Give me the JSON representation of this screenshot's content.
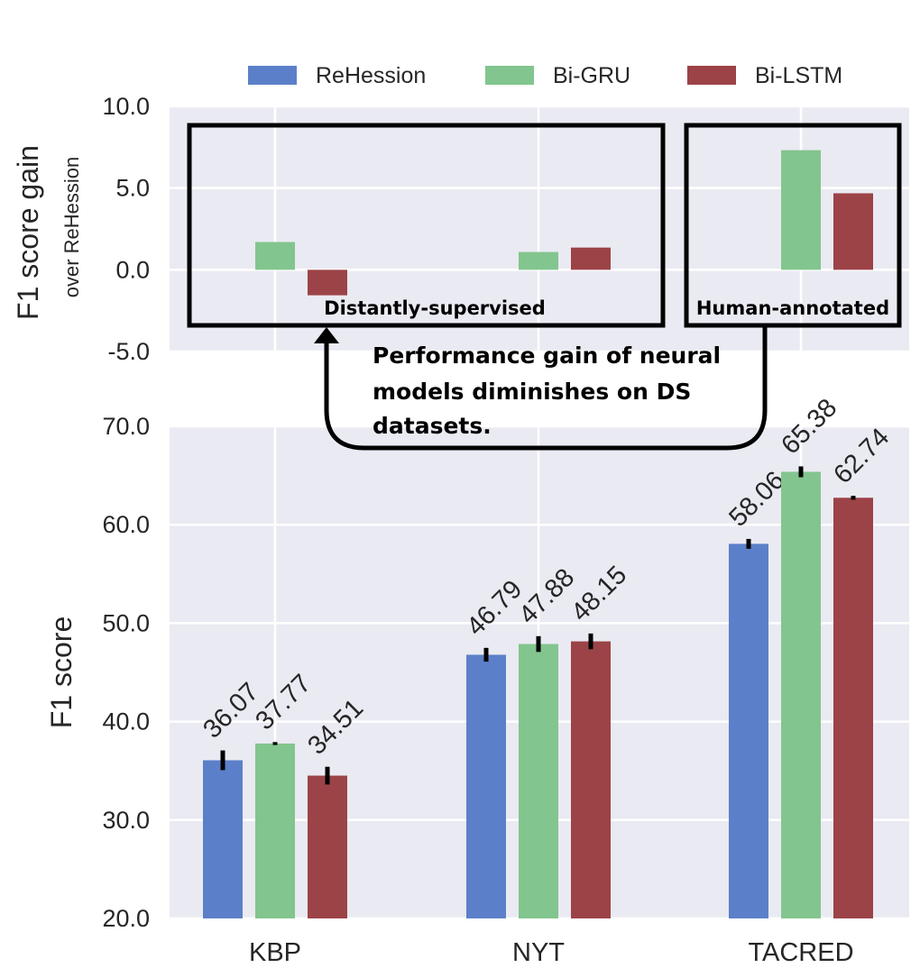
{
  "chart_data": [
    {
      "type": "bar",
      "title": "",
      "ylabel": "F1 score gain",
      "ylabel_sub": "over ReHession",
      "ylim": [
        -5.0,
        10.0
      ],
      "yticks": [
        "10.0",
        "5.0",
        "0.0",
        "-5.0"
      ],
      "categories": [
        "KBP",
        "NYT",
        "TACRED"
      ],
      "series": [
        {
          "name": "ReHession",
          "color": "#5b80c9",
          "values": [
            0,
            0,
            0
          ]
        },
        {
          "name": "Bi-GRU",
          "color": "#82c58e",
          "values": [
            1.7,
            1.09,
            7.32
          ]
        },
        {
          "name": "Bi-LSTM",
          "color": "#9c4347",
          "values": [
            -1.56,
            1.36,
            4.68
          ]
        }
      ],
      "annotations": {
        "ds_box": "Distantly-supervised",
        "ha_box": "Human-annotated"
      }
    },
    {
      "type": "bar",
      "title": "",
      "ylabel": "F1 score",
      "ylim": [
        20.0,
        70.0
      ],
      "yticks": [
        "70.0",
        "60.0",
        "50.0",
        "40.0",
        "30.0",
        "20.0"
      ],
      "categories": [
        "KBP",
        "NYT",
        "TACRED"
      ],
      "series": [
        {
          "name": "ReHession",
          "color": "#5b80c9",
          "values": [
            36.07,
            46.79,
            58.06
          ],
          "labels": [
            "36.07",
            "46.79",
            "58.06"
          ],
          "err": [
            1.0,
            0.7,
            0.5
          ]
        },
        {
          "name": "Bi-GRU",
          "color": "#82c58e",
          "values": [
            37.77,
            47.88,
            65.38
          ],
          "labels": [
            "37.77",
            "47.88",
            "65.38"
          ],
          "err": [
            0.15,
            0.8,
            0.55
          ]
        },
        {
          "name": "Bi-LSTM",
          "color": "#9c4347",
          "values": [
            34.51,
            48.15,
            62.74
          ],
          "labels": [
            "34.51",
            "48.15",
            "62.74"
          ],
          "err": [
            0.9,
            0.8,
            0.2
          ]
        }
      ]
    }
  ],
  "legend": [
    "ReHession",
    "Bi-GRU",
    "Bi-LSTM"
  ],
  "annotation_text": [
    "Performance gain of neural",
    "models diminishes on DS",
    "datasets."
  ]
}
